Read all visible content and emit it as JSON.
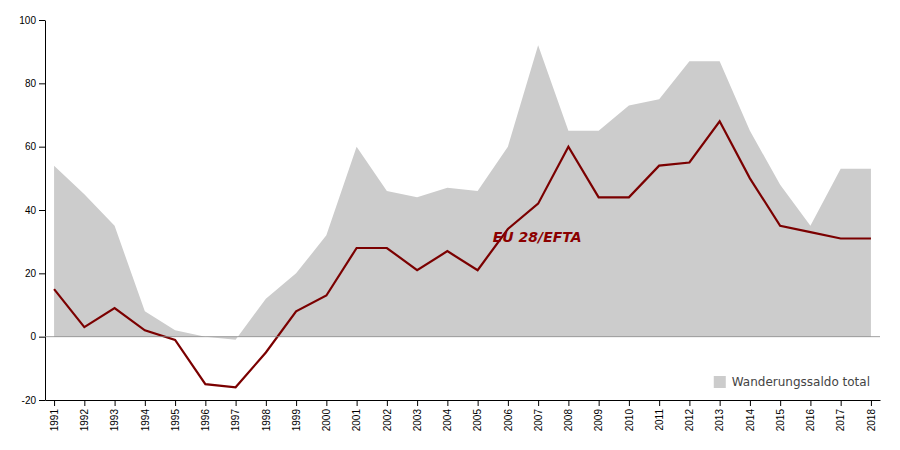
{
  "chart_data": {
    "type": "line",
    "x": [
      1991,
      1992,
      1993,
      1994,
      1995,
      1996,
      1997,
      1998,
      1999,
      2000,
      2001,
      2002,
      2003,
      2004,
      2005,
      2006,
      2007,
      2008,
      2009,
      2010,
      2011,
      2012,
      2013,
      2014,
      2015,
      2016,
      2017,
      2018
    ],
    "xlim": [
      1990.7,
      2018.3
    ],
    "xticks": [
      1991,
      1992,
      1993,
      1994,
      1995,
      1996,
      1997,
      1998,
      1999,
      2000,
      2001,
      2002,
      2003,
      2004,
      2005,
      2006,
      2007,
      2008,
      2009,
      2010,
      2011,
      2012,
      2013,
      2014,
      2015,
      2016,
      2017,
      2018
    ],
    "ylim": [
      -20,
      100
    ],
    "yticks": [
      -20,
      0,
      20,
      40,
      60,
      80,
      100
    ],
    "grid": false,
    "legend": "lower right",
    "series": [
      {
        "name": "Wanderungssaldo total",
        "type": "area",
        "color": "#CCCCCC",
        "values": [
          54,
          45,
          35,
          8,
          2,
          0,
          -1,
          12,
          20,
          32,
          60,
          46,
          44,
          47,
          46,
          60,
          92,
          65,
          65,
          73,
          75,
          87,
          87,
          65,
          48,
          35,
          53,
          53
        ]
      },
      {
        "type": "line",
        "color": "#7B0000",
        "values": [
          15,
          3,
          9,
          2,
          -1,
          -15,
          -16,
          -5,
          8,
          13,
          28,
          28,
          21,
          27,
          21,
          34,
          42,
          60,
          44,
          44,
          54,
          55,
          68,
          50,
          35,
          33,
          31,
          31
        ]
      }
    ],
    "annotations": [
      {
        "text": "EU 28/EFTA",
        "x": 2005.5,
        "y": 30,
        "color": "#8B0000"
      }
    ]
  }
}
